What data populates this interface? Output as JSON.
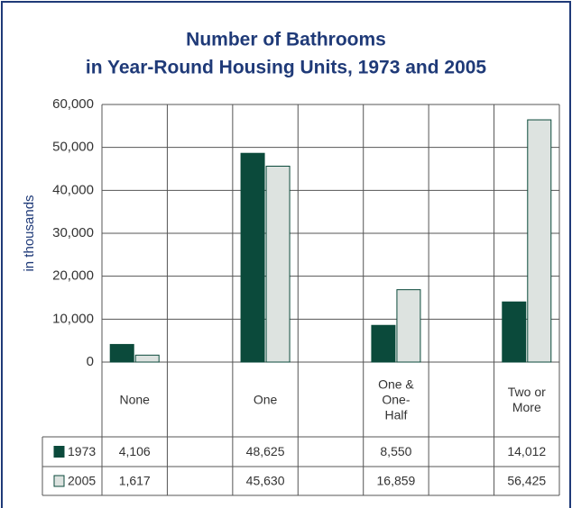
{
  "chart_data": {
    "type": "bar",
    "title": "Number of Bathrooms",
    "subtitle": "in Year-Round Housing Units, 1973 and 2005",
    "y_label": "in thousands",
    "categories": [
      "None",
      null,
      "One",
      null,
      "One & One-Half",
      null,
      "Two or More"
    ],
    "series": [
      {
        "name": "1973",
        "color": "#0b4a3b",
        "values": [
          4106,
          null,
          48625,
          null,
          8550,
          null,
          14012
        ],
        "value_labels": [
          "4,106",
          null,
          "48,625",
          null,
          "8,550",
          null,
          "14,012"
        ]
      },
      {
        "name": "2005",
        "color": "#dde3e0",
        "values": [
          1617,
          null,
          45630,
          null,
          16859,
          null,
          56425
        ],
        "value_labels": [
          "1,617",
          null,
          "45,630",
          null,
          "16,859",
          null,
          "56,425"
        ]
      }
    ],
    "ylim": [
      0,
      60000
    ],
    "yticks": [
      0,
      {
        "value": 10000,
        "label": "10,000"
      },
      {
        "value": 20000,
        "label": "20,000"
      },
      {
        "value": 30000,
        "label": "30,000"
      },
      {
        "value": 40000,
        "label": "40,000"
      },
      {
        "value": 50000,
        "label": "50,000"
      },
      {
        "value": 60000,
        "label": "60,000"
      }
    ],
    "grid": true
  }
}
